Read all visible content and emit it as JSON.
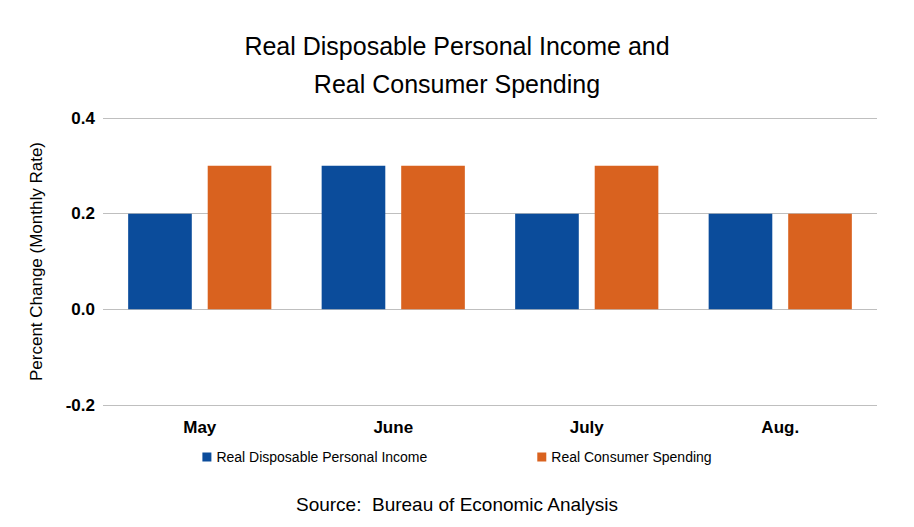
{
  "chart_data": {
    "type": "bar",
    "title": "Real Disposable Personal Income and\nReal Consumer Spending",
    "y_label": "Percent Change (Monthly Rate)",
    "annotations": [
      "Source:  Bureau of Economic Analysis"
    ],
    "categories": [
      "May",
      "June",
      "July",
      "Aug."
    ],
    "series": [
      {
        "name": "Real Disposable Personal Income",
        "color": "#0b4c9b",
        "values": [
          0.2,
          0.3,
          0.2,
          0.2
        ]
      },
      {
        "name": "Real Consumer Spending",
        "color": "#d9621f",
        "values": [
          0.3,
          0.3,
          0.3,
          0.2
        ]
      }
    ],
    "ylim": [
      -0.2,
      0.4
    ],
    "yticks": [
      -0.2,
      {
        "value": 0,
        "label": "0.0"
      },
      0.2,
      0.4
    ],
    "grid": true,
    "legend": "bottom"
  }
}
